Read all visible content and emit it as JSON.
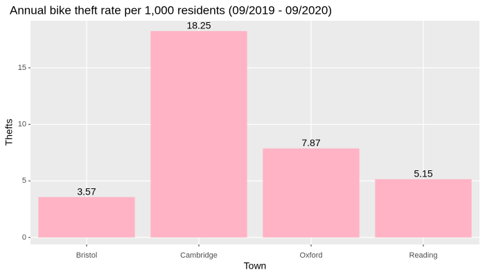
{
  "chart_data": {
    "type": "bar",
    "title": "Annual bike theft rate per 1,000 residents (09/2019 - 09/2020)",
    "x_label": "Town",
    "y_label": "Thefts",
    "categories": [
      "Bristol",
      "Cambridge",
      "Oxford",
      "Reading"
    ],
    "values": [
      3.57,
      18.25,
      7.87,
      5.15
    ],
    "color": "#ffb3c4",
    "ylim": [
      -0.62,
      19.16
    ],
    "yticks": [
      0,
      5,
      10,
      15
    ],
    "grid": true
  }
}
